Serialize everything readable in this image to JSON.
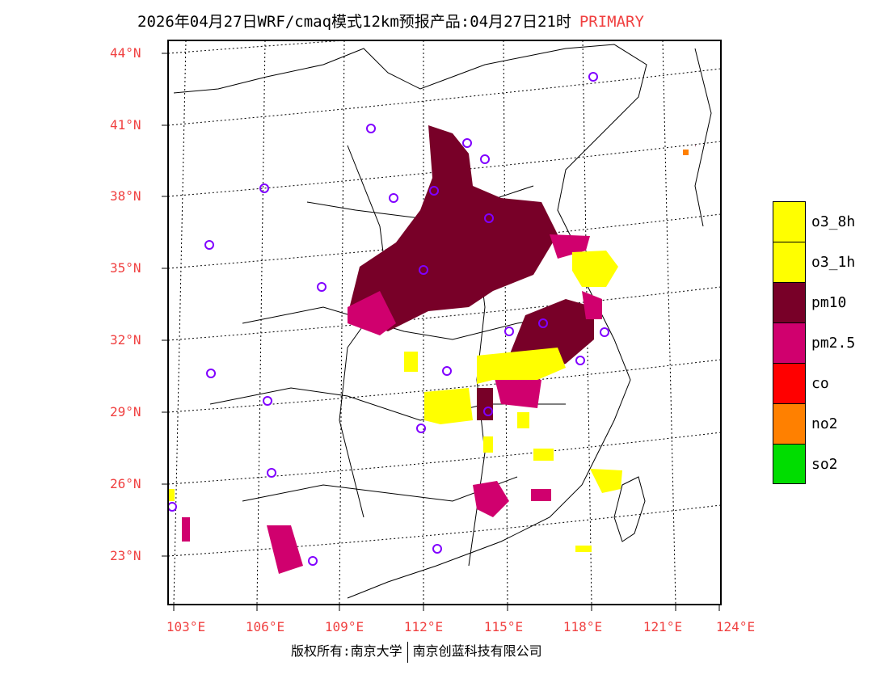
{
  "title": {
    "main": "2026年04月27日WRF/cmaq模式12km预报产品:04月27日21时",
    "product": "PRIMARY"
  },
  "lat_labels": [
    "44°N",
    "41°N",
    "38°N",
    "35°N",
    "32°N",
    "29°N",
    "26°N",
    "23°N"
  ],
  "lon_labels": [
    "103°E",
    "106°E",
    "109°E",
    "112°E",
    "115°E",
    "118°E",
    "121°E",
    "124°E"
  ],
  "legend": [
    {
      "label": "o3_8h",
      "color": "#ffff00"
    },
    {
      "label": "o3_1h",
      "color": "#ffff00"
    },
    {
      "label": "pm10",
      "color": "#780028"
    },
    {
      "label": "pm2.5",
      "color": "#d0006e"
    },
    {
      "label": "co",
      "color": "#ff0000"
    },
    {
      "label": "no2",
      "color": "#ff8000"
    },
    {
      "label": "so2",
      "color": "#00dd00"
    }
  ],
  "footer": {
    "left": "版权所有:南京大学",
    "right": "南京创蓝科技有限公司"
  }
}
